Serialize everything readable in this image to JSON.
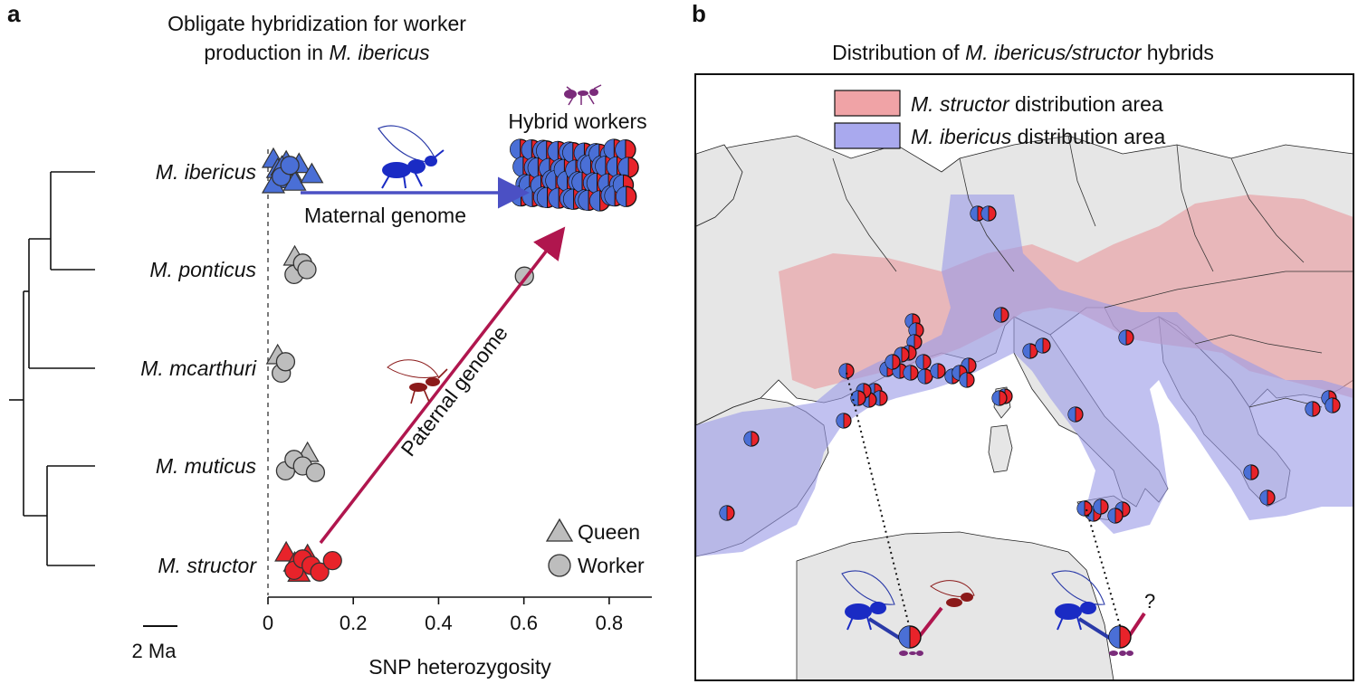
{
  "panel_a": {
    "letter": "a",
    "title_line1": "Obligate hybridization for worker",
    "title_line2_prefix": "production in ",
    "title_line2_species": "M. ibericus",
    "hybrid_label": "Hybrid workers",
    "maternal_label": "Maternal genome",
    "paternal_label": "Paternal genome",
    "scale_label": "2 Ma",
    "legend": [
      {
        "shape": "triangle",
        "label": "Queen"
      },
      {
        "shape": "circle",
        "label": "Worker"
      }
    ],
    "colors": {
      "ibericus": "#4a6fd6",
      "structor": "#e8232a",
      "other": "#bdbdbd",
      "maternal_arrow": "#4b50c4",
      "paternal_arrow": "#b0164e"
    }
  },
  "chart_data": {
    "type": "scatter",
    "title": "Obligate hybridization for worker production in M. ibericus",
    "xlabel": "SNP heterozygosity",
    "ylabel": "",
    "xlim": [
      0,
      0.9
    ],
    "xticks": [
      "0",
      "0.2",
      "0.4",
      "0.6",
      "0.8"
    ],
    "xtick_values": [
      0,
      0.2,
      0.4,
      0.6,
      0.8
    ],
    "categories": [
      "M. ibericus",
      "M. ponticus",
      "M. mcarthuri",
      "M. muticus",
      "M. structor"
    ],
    "series": [
      {
        "name": "M. ibericus",
        "color": "#4a6fd6",
        "queens": [
          0.0,
          0.01,
          0.02,
          0.03,
          0.04,
          0.05,
          0.06,
          0.09,
          0.0,
          0.02
        ],
        "workers": [
          0.01,
          0.03
        ]
      },
      {
        "name": "M. ponticus",
        "color": "#bdbdbd",
        "queens": [
          0.05
        ],
        "workers": [
          0.04,
          0.06,
          0.07,
          0.58
        ]
      },
      {
        "name": "M. mcarthuri",
        "color": "#bdbdbd",
        "queens": [
          0.01
        ],
        "workers": [
          0.01,
          0.02
        ]
      },
      {
        "name": "M. muticus",
        "color": "#bdbdbd",
        "queens": [
          0.08
        ],
        "workers": [
          0.02,
          0.04,
          0.06,
          0.09
        ]
      },
      {
        "name": "M. structor",
        "color": "#e8232a",
        "queens": [
          0.03,
          0.05,
          0.06,
          0.08
        ],
        "workers": [
          0.04,
          0.06,
          0.08,
          0.1,
          0.13
        ]
      },
      {
        "name": "Hybrid workers",
        "color": "mixed",
        "queens": [],
        "workers": [
          0.6,
          0.62,
          0.64,
          0.66,
          0.68,
          0.7,
          0.72,
          0.74,
          0.76,
          0.78,
          0.8,
          0.82,
          0.84
        ]
      }
    ],
    "legend_position": "bottom-right"
  },
  "panel_b": {
    "letter": "b",
    "title_prefix": "Distribution of ",
    "title_species": "M. ibericus/structor",
    "title_suffix": " hybrids",
    "legend": [
      {
        "species": "M. structor",
        "text": " distribution area",
        "color": "#f0a3a6"
      },
      {
        "species": "M. ibericus",
        "text": " distribution area",
        "color": "#a9a9ee"
      }
    ],
    "question_mark": "?",
    "colors": {
      "land": "#e6e6e6",
      "sea": "#ffffff",
      "structor_area": "#e89a9e",
      "ibericus_area": "#9b9be6"
    }
  }
}
